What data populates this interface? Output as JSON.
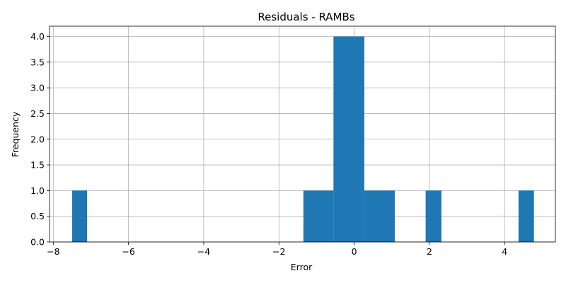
{
  "chart_data": {
    "type": "bar",
    "title": "Residuals - RAMBs",
    "xlabel": "Error",
    "ylabel": "Frequency",
    "xlim": [
      -8.1,
      5.35
    ],
    "ylim": [
      0,
      4.2
    ],
    "x_ticks": [
      -8,
      -6,
      -4,
      -2,
      0,
      2,
      4
    ],
    "x_tick_labels": [
      "−8",
      "−6",
      "−4",
      "−2",
      "0",
      "2",
      "4"
    ],
    "y_ticks": [
      0.0,
      0.5,
      1.0,
      1.5,
      2.0,
      2.5,
      3.0,
      3.5,
      4.0
    ],
    "y_tick_labels": [
      "0.0",
      "0.5",
      "1.0",
      "1.5",
      "2.0",
      "2.5",
      "3.0",
      "3.5",
      "4.0"
    ],
    "grid": true,
    "bins": [
      {
        "x0": -7.5,
        "x1": -7.1,
        "count": 1
      },
      {
        "x0": -1.35,
        "x1": -0.55,
        "count": 1
      },
      {
        "x0": -0.55,
        "x1": 0.27,
        "count": 4
      },
      {
        "x0": 0.27,
        "x1": 1.08,
        "count": 1
      },
      {
        "x0": 1.9,
        "x1": 2.32,
        "count": 1
      },
      {
        "x0": 4.37,
        "x1": 4.78,
        "count": 1
      }
    ],
    "bar_color": "#1f77b4"
  }
}
